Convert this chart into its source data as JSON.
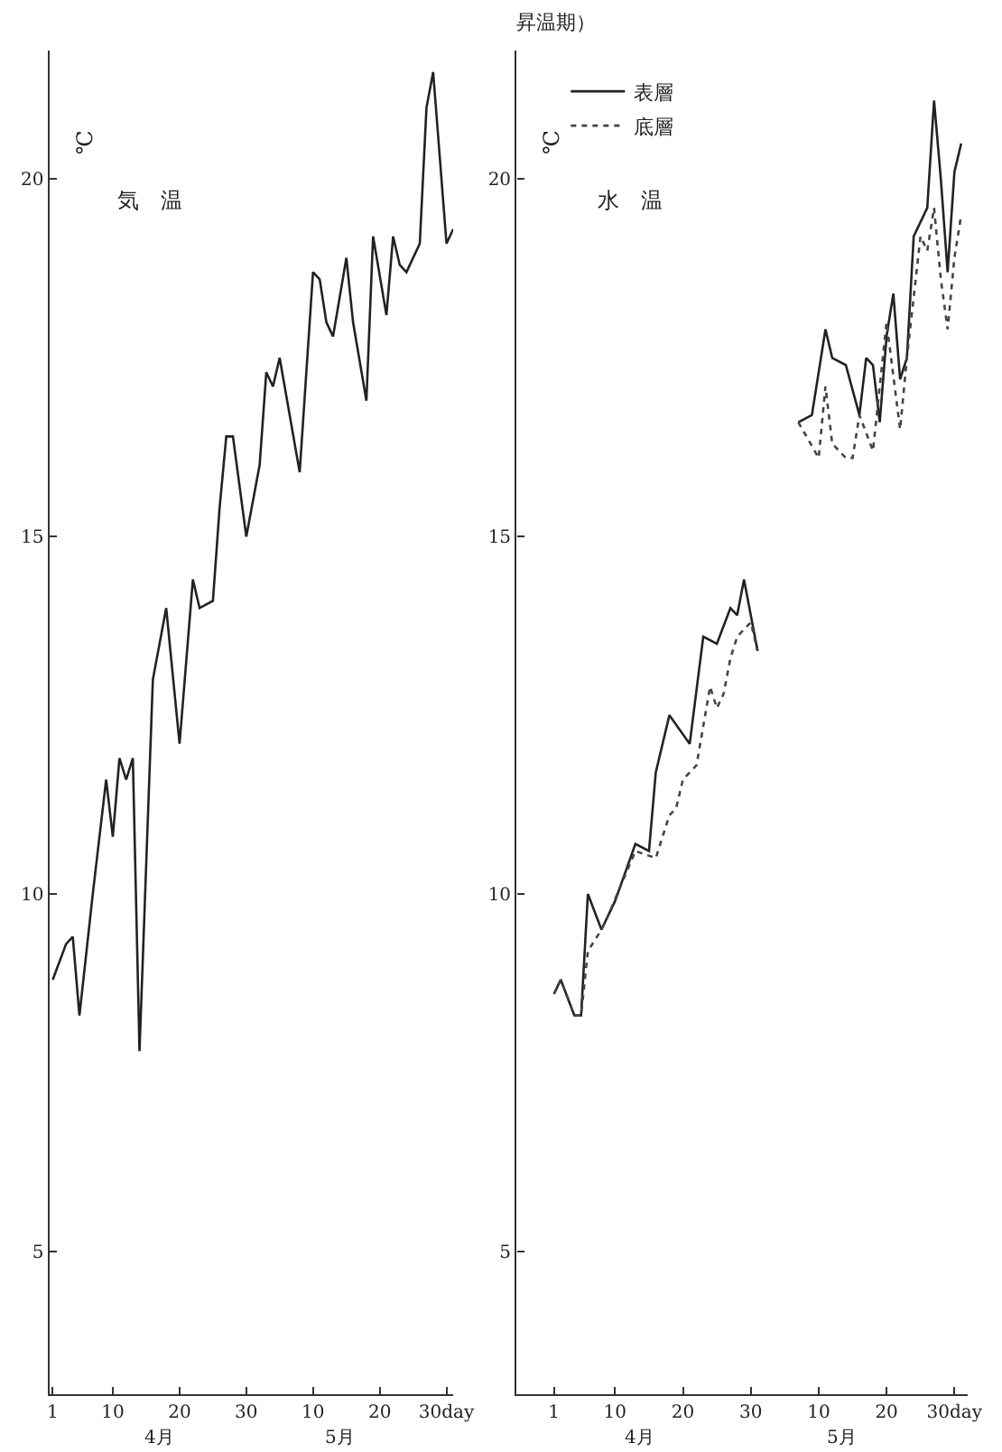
{
  "chart_data": [
    {
      "type": "line",
      "ylabel": "℃",
      "annotations": [
        "気　温",
        "4月",
        "5月"
      ],
      "marker": "none",
      "line_style": "solid",
      "xlim": [
        "--03-31T12:00",
        "--05-31"
      ],
      "ylim": [
        3,
        21.8
      ],
      "xticks": [
        {
          "value": "--04-01",
          "label": "1"
        },
        {
          "value": "--04-10",
          "label": "10"
        },
        {
          "value": "--04-20",
          "label": "20"
        },
        {
          "value": "--04-30",
          "label": "30"
        },
        {
          "value": "--05-10",
          "label": "10"
        },
        {
          "value": "--05-20",
          "label": "20"
        },
        {
          "value": "--05-30",
          "label": "30day"
        }
      ],
      "yticks": [
        5,
        10,
        15,
        20
      ],
      "series": [
        {
          "color": "#222222",
          "x": [
            "--04-01",
            "--04-03",
            "--04-04",
            "--04-05",
            "--04-07",
            "--04-09",
            "--04-10",
            "--04-11",
            "--04-12",
            "--04-13",
            "--04-14",
            "--04-16",
            "--04-18",
            "--04-20",
            "--04-22",
            "--04-23",
            "--04-25",
            "--04-26",
            "--04-27",
            "--04-28",
            "--04-30",
            "--05-02",
            "--05-03",
            "--05-04",
            "--05-05",
            "--05-08",
            "--05-10",
            "--05-11",
            "--05-12",
            "--05-13",
            "--05-15",
            "--05-16",
            "--05-18",
            "--05-19",
            "--05-21",
            "--05-22",
            "--05-23",
            "--05-24",
            "--05-26",
            "--05-27",
            "--05-28",
            "--05-30",
            "--05-31"
          ],
          "values": [
            8.8,
            9.3,
            9.4,
            8.3,
            10.0,
            11.6,
            10.8,
            11.9,
            11.6,
            11.9,
            7.8,
            13.0,
            14.0,
            12.1,
            14.4,
            14.0,
            14.1,
            15.4,
            16.4,
            16.4,
            15.0,
            16.0,
            17.3,
            17.1,
            17.5,
            15.9,
            18.7,
            18.6,
            18.0,
            17.8,
            18.9,
            18.0,
            16.9,
            19.2,
            18.1,
            19.2,
            18.8,
            18.7,
            19.1,
            21.0,
            21.5,
            19.1,
            19.3
          ]
        }
      ]
    },
    {
      "type": "line",
      "title": "昇温期）",
      "ylabel": "℃",
      "annotations": [
        "水　温",
        "4月",
        "5月"
      ],
      "marker": "none",
      "legend": "top left",
      "xlim": [
        "--03-26T12:00",
        "--06-01"
      ],
      "ylim": [
        3,
        21.8
      ],
      "xticks": [
        {
          "value": "--04-01",
          "label": "1"
        },
        {
          "value": "--04-10",
          "label": "10"
        },
        {
          "value": "--04-20",
          "label": "20"
        },
        {
          "value": "--04-30",
          "label": "30"
        },
        {
          "value": "--05-10",
          "label": "10"
        },
        {
          "value": "--05-20",
          "label": "20"
        },
        {
          "value": "--05-30",
          "label": "30day"
        }
      ],
      "yticks": [
        5,
        10,
        15,
        20
      ],
      "series": [
        {
          "name": "表層",
          "color": "#222222",
          "line_style": "solid",
          "x": [
            "--04-01",
            "--04-02",
            "--04-04",
            "--04-05",
            "--04-06",
            "--04-08",
            "--04-10",
            "--04-13",
            "--04-15",
            "--04-16",
            "--04-18",
            "--04-21",
            "--04-23",
            "--04-25",
            "--04-27",
            "--04-28",
            "--04-29",
            "--05-01",
            "--05-04",
            "--05-07",
            "--05-09",
            "--05-11",
            "--05-12",
            "--05-14",
            "--05-16",
            "--05-17",
            "--05-18",
            "--05-19",
            "--05-20",
            "--05-21",
            "--05-22",
            "--05-23",
            "--05-24",
            "--05-26",
            "--05-27",
            "--05-28",
            "--05-29",
            "--05-30",
            "--05-31"
          ],
          "values": [
            8.6,
            8.8,
            8.3,
            8.3,
            10.0,
            9.5,
            9.9,
            10.7,
            10.6,
            11.7,
            12.5,
            12.1,
            13.6,
            13.5,
            14.0,
            13.9,
            14.4,
            13.4,
            null,
            16.6,
            16.7,
            17.9,
            17.5,
            17.4,
            16.7,
            17.5,
            17.4,
            16.6,
            17.8,
            18.4,
            17.2,
            17.5,
            19.2,
            19.6,
            21.1,
            20.0,
            18.7,
            20.1,
            20.5
          ]
        },
        {
          "name": "底層",
          "color": "#444444",
          "line_style": "dotted",
          "x": [
            "--04-01",
            "--04-02",
            "--04-04",
            "--04-05",
            "--04-06",
            "--04-08",
            "--04-09",
            "--04-13",
            "--04-16",
            "--04-18",
            "--04-19",
            "--04-20",
            "--04-22",
            "--04-24",
            "--04-25",
            "--04-26",
            "--04-27",
            "--04-28",
            "--04-30",
            "--05-01",
            "--05-04",
            "--05-07",
            "--05-10",
            "--05-11",
            "--05-12",
            "--05-14",
            "--05-15",
            "--05-16",
            "--05-18",
            "--05-20",
            "--05-22",
            "--05-23",
            "--05-25",
            "--05-26",
            "--05-27",
            "--05-28",
            "--05-29",
            "--05-30",
            "--05-31"
          ],
          "values": [
            8.6,
            8.8,
            8.3,
            8.3,
            9.2,
            9.5,
            9.7,
            10.6,
            10.5,
            11.1,
            11.2,
            11.6,
            11.8,
            12.9,
            12.6,
            12.8,
            13.3,
            13.6,
            13.8,
            13.4,
            null,
            16.6,
            16.1,
            17.1,
            16.3,
            16.1,
            16.1,
            16.7,
            16.2,
            18.0,
            16.5,
            17.5,
            19.2,
            19.0,
            19.6,
            18.6,
            17.9,
            18.9,
            19.5
          ]
        }
      ]
    }
  ]
}
